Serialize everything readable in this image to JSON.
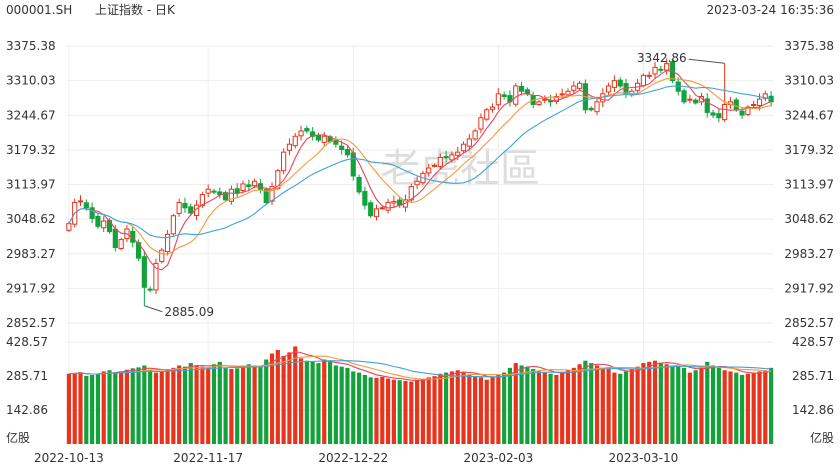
{
  "header": {
    "symbol": "000001.SH",
    "name": "上证指数 - 日K",
    "datetime": "2023-03-24 16:35:36"
  },
  "watermark": "老虎社區",
  "colors": {
    "up": "#e8341c",
    "down": "#12a23c",
    "ma1": "#e8455b",
    "ma2": "#f29a3b",
    "ma3": "#3fa3d9",
    "grid": "#eeeeee",
    "text": "#333333"
  },
  "chart_data": {
    "type": "candlestick",
    "price_axis": {
      "ticks": [
        "3375.38",
        "3310.03",
        "3244.67",
        "3179.32",
        "3113.97",
        "3048.62",
        "2983.27",
        "2917.92",
        "2852.57"
      ],
      "min": 2852.57,
      "max": 3375.38,
      "sides": "both"
    },
    "volume_axis": {
      "ticks": [
        "428.57",
        "285.71",
        "142.86"
      ],
      "unit": "亿股",
      "max": 428.57
    },
    "date_labels": [
      {
        "text": "2022-10-13",
        "index": 0
      },
      {
        "text": "2022-11-17",
        "index": 24
      },
      {
        "text": "2022-12-22",
        "index": 49
      },
      {
        "text": "2023-02-03",
        "index": 74
      },
      {
        "text": "2023-03-10",
        "index": 99
      }
    ],
    "annotations": [
      {
        "text": "3342.86",
        "index": 113,
        "value": 3342.86,
        "kind": "high"
      },
      {
        "text": "2885.09",
        "index": 13,
        "value": 2885.09,
        "kind": "low"
      }
    ],
    "closes": [
      3040,
      3080,
      3083,
      3070,
      3050,
      3035,
      3045,
      3025,
      2995,
      3010,
      3030,
      3005,
      2975,
      2920,
      2915,
      2965,
      2990,
      3020,
      3055,
      3080,
      3070,
      3060,
      3075,
      3095,
      3105,
      3100,
      3095,
      3085,
      3105,
      3098,
      3115,
      3110,
      3120,
      3105,
      3080,
      3110,
      3140,
      3175,
      3190,
      3205,
      3215,
      3215,
      3205,
      3198,
      3205,
      3195,
      3190,
      3180,
      3170,
      3130,
      3100,
      3075,
      3055,
      3068,
      3070,
      3080,
      3082,
      3075,
      3085,
      3110,
      3120,
      3135,
      3145,
      3150,
      3165,
      3165,
      3170,
      3175,
      3190,
      3200,
      3215,
      3240,
      3255,
      3260,
      3285,
      3280,
      3270,
      3300,
      3290,
      3285,
      3265,
      3270,
      3275,
      3270,
      3280,
      3285,
      3290,
      3300,
      3305,
      3255,
      3255,
      3270,
      3285,
      3300,
      3310,
      3300,
      3285,
      3290,
      3305,
      3320,
      3320,
      3335,
      3330,
      3342,
      3310,
      3290,
      3270,
      3275,
      3268,
      3280,
      3250,
      3245,
      3240,
      3265,
      3270,
      3255,
      3245,
      3260,
      3265,
      3275,
      3285,
      3270
    ],
    "volumes": [
      295,
      298,
      302,
      286,
      290,
      295,
      305,
      310,
      300,
      305,
      312,
      318,
      322,
      330,
      310,
      300,
      305,
      315,
      320,
      330,
      325,
      340,
      330,
      325,
      320,
      335,
      345,
      320,
      315,
      318,
      326,
      335,
      330,
      325,
      355,
      380,
      395,
      370,
      385,
      410,
      360,
      350,
      345,
      340,
      355,
      345,
      330,
      325,
      320,
      305,
      300,
      290,
      280,
      278,
      282,
      275,
      270,
      268,
      265,
      262,
      270,
      275,
      280,
      285,
      295,
      300,
      305,
      310,
      300,
      290,
      285,
      280,
      270,
      280,
      290,
      300,
      320,
      340,
      330,
      325,
      315,
      305,
      300,
      295,
      290,
      300,
      310,
      320,
      335,
      350,
      340,
      330,
      320,
      315,
      300,
      295,
      305,
      315,
      325,
      340,
      345,
      350,
      340,
      335,
      330,
      325,
      320,
      300,
      310,
      320,
      345,
      330,
      320,
      310,
      305,
      300,
      290,
      295,
      300,
      305,
      310,
      320
    ]
  }
}
